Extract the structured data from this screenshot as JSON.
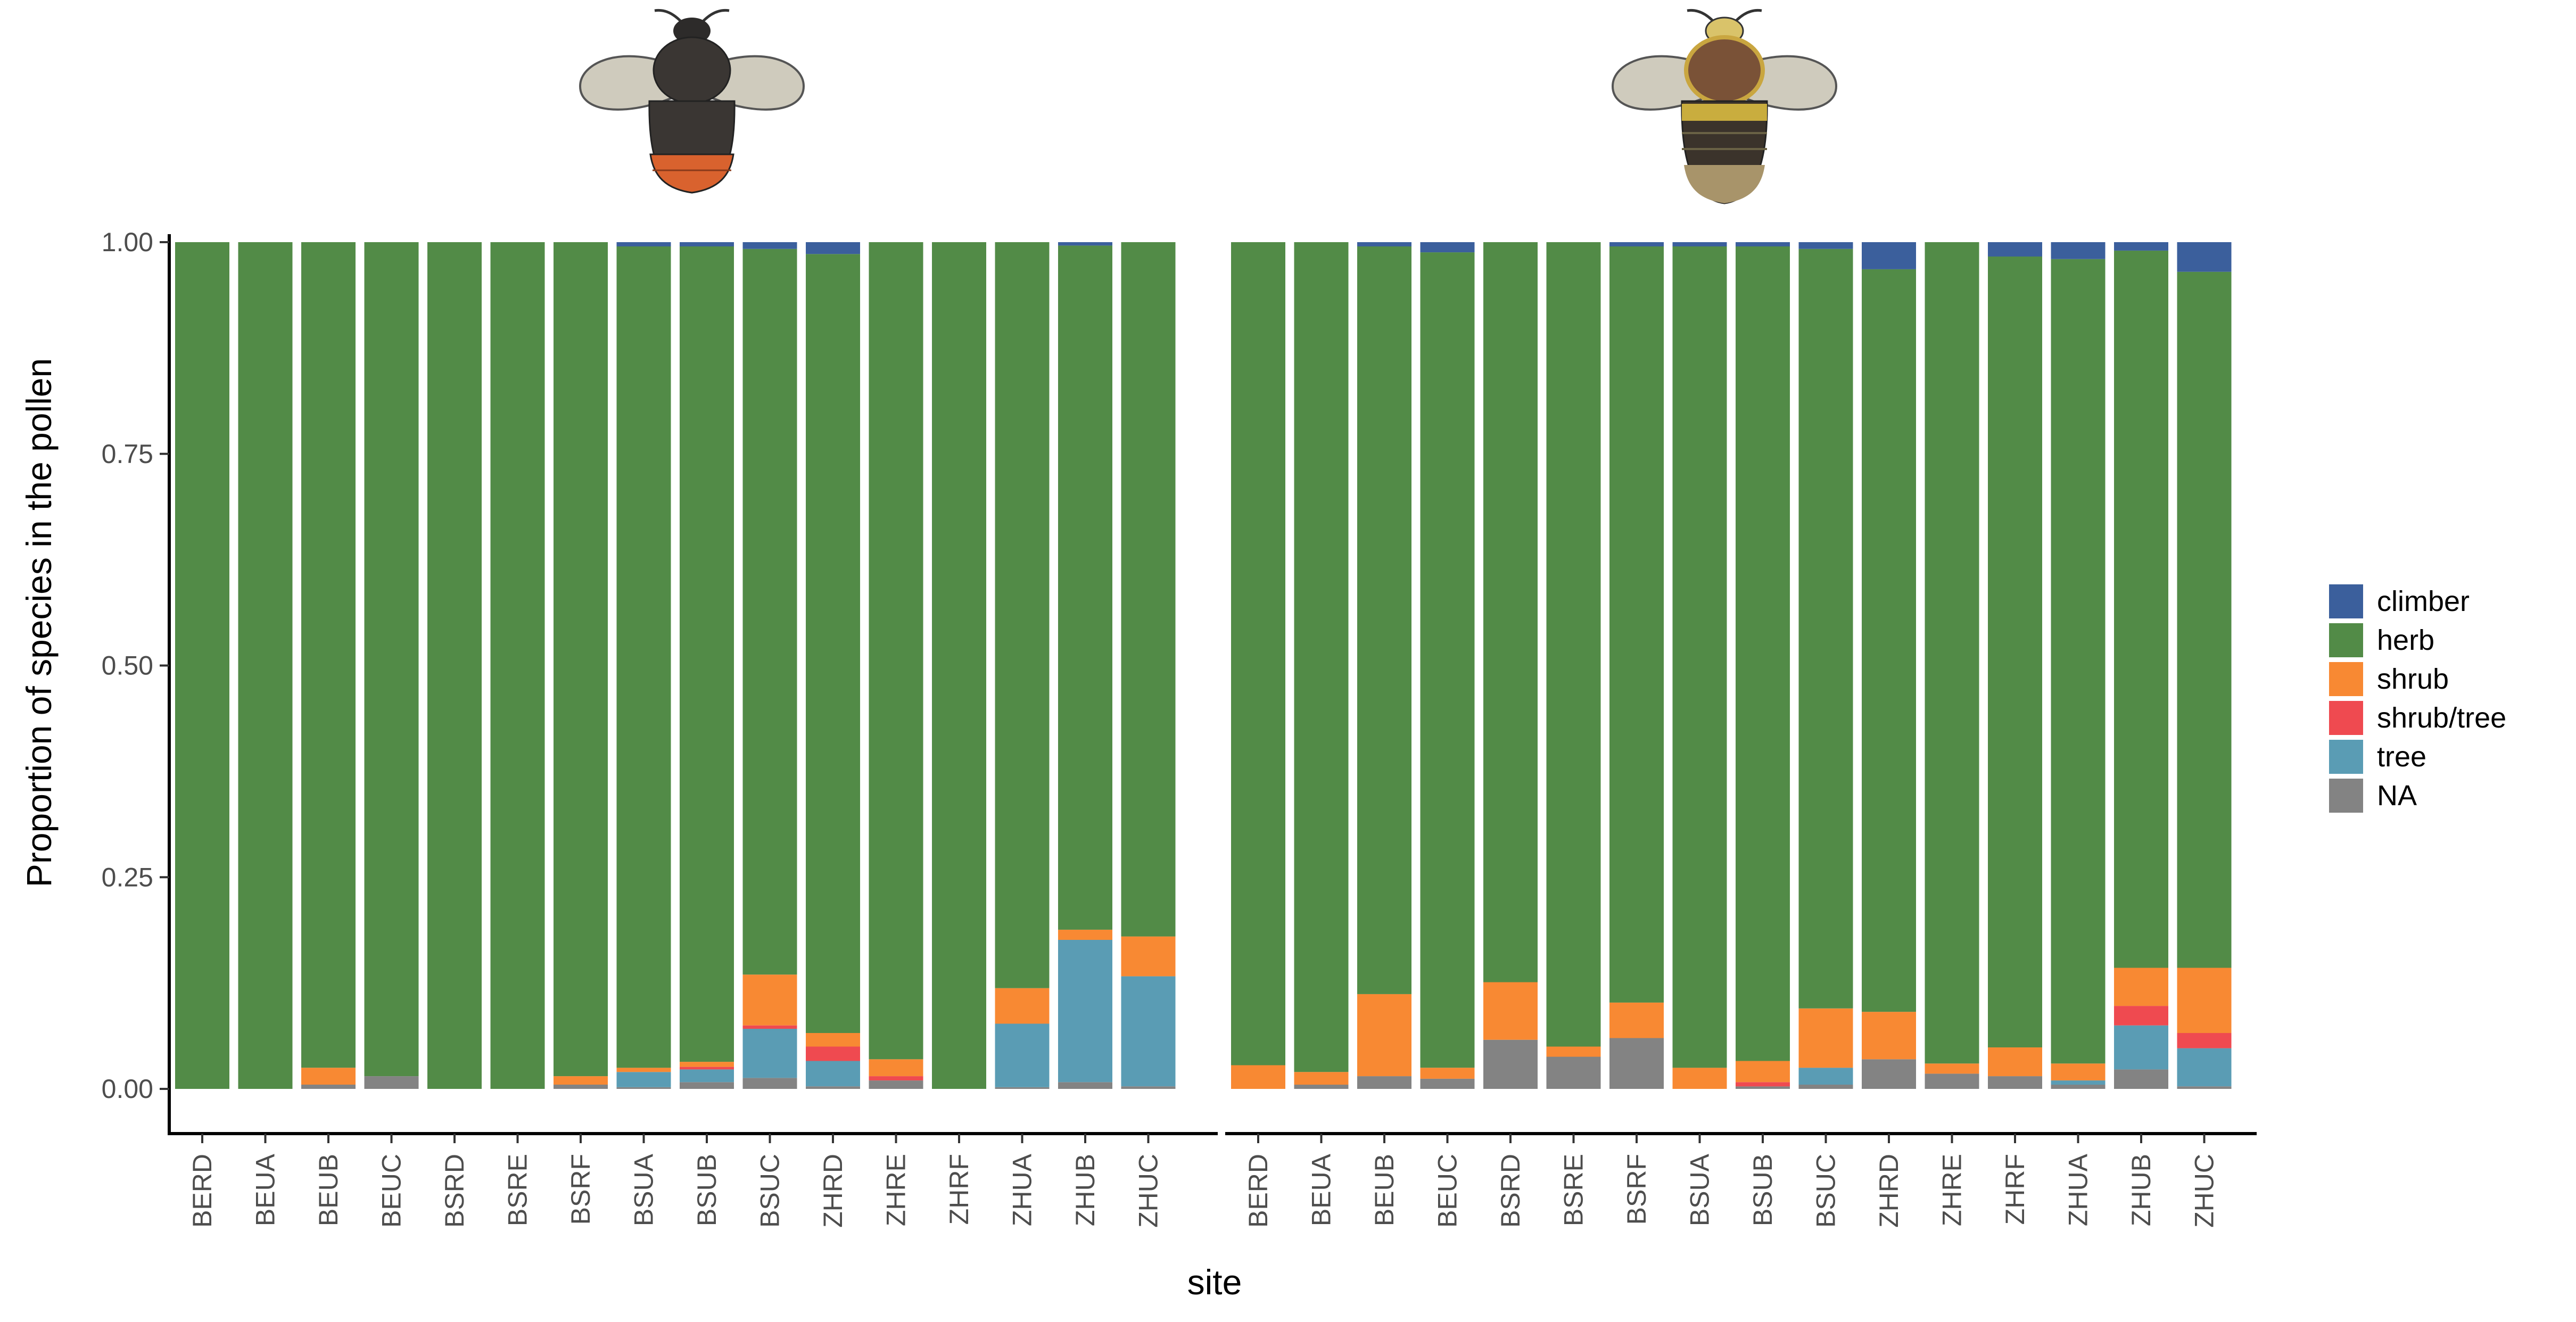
{
  "chart_data": {
    "type": "bar",
    "stacked": true,
    "xlabel": "site",
    "ylabel": "Proportion of species in the pollen",
    "ylim": [
      0,
      1
    ],
    "yticks": [
      "0.00",
      "0.25",
      "0.50",
      "0.75",
      "1.00"
    ],
    "grid": false,
    "legend": {
      "placement": "right",
      "entries": [
        "climber",
        "herb",
        "shrub",
        "shrub/tree",
        "tree",
        "NA"
      ]
    },
    "colors": {
      "climber": "#3b5f9c",
      "herb": "#528b47",
      "shrub": "#f88933",
      "shrub/tree": "#ef4a50",
      "tree": "#5a9cb4",
      "NA": "#838383"
    },
    "stack_order_bottom_to_top": [
      "NA",
      "tree",
      "shrub/tree",
      "shrub",
      "herb",
      "climber"
    ],
    "panels": [
      {
        "icon": "red-tailed-bumblebee-icon",
        "categories": [
          "BERD",
          "BEUA",
          "BEUB",
          "BEUC",
          "BSRD",
          "BSRE",
          "BSRF",
          "BSUA",
          "BSUB",
          "BSUC",
          "ZHRD",
          "ZHRE",
          "ZHRF",
          "ZHUA",
          "ZHUB",
          "ZHUC"
        ],
        "series": [
          {
            "name": "NA",
            "values": [
              0,
              0,
              0.005,
              0.015,
              0,
              0,
              0.005,
              0.002,
              0.008,
              0.013,
              0.003,
              0.01,
              0,
              0.002,
              0.008,
              0.003
            ]
          },
          {
            "name": "tree",
            "values": [
              0,
              0,
              0,
              0,
              0,
              0,
              0,
              0.018,
              0.015,
              0.058,
              0.03,
              0,
              0,
              0.075,
              0.168,
              0.13
            ]
          },
          {
            "name": "shrub/tree",
            "values": [
              0,
              0,
              0,
              0,
              0,
              0,
              0,
              0,
              0.003,
              0.004,
              0.017,
              0.005,
              0,
              0,
              0,
              0
            ]
          },
          {
            "name": "shrub",
            "values": [
              0,
              0,
              0.02,
              0,
              0,
              0,
              0.01,
              0.005,
              0.006,
              0.06,
              0.016,
              0.02,
              0,
              0.042,
              0.012,
              0.047
            ]
          },
          {
            "name": "herb",
            "values": [
              1,
              1,
              0.975,
              0.985,
              1,
              1,
              0.985,
              0.97,
              0.963,
              0.857,
              0.92,
              0.965,
              1,
              0.881,
              0.808,
              0.82
            ]
          },
          {
            "name": "climber",
            "values": [
              0,
              0,
              0,
              0,
              0,
              0,
              0,
              0.005,
              0.005,
              0.008,
              0.014,
              0,
              0,
              0,
              0.004,
              0
            ]
          }
        ]
      },
      {
        "icon": "buff-tailed-bumblebee-icon",
        "categories": [
          "BERD",
          "BEUA",
          "BEUB",
          "BEUC",
          "BSRD",
          "BSRE",
          "BSRF",
          "BSUA",
          "BSUB",
          "BSUC",
          "ZHRD",
          "ZHRE",
          "ZHRF",
          "ZHUA",
          "ZHUB",
          "ZHUC"
        ],
        "series": [
          {
            "name": "NA",
            "values": [
              0,
              0.005,
              0.015,
              0.012,
              0.058,
              0.038,
              0.06,
              0,
              0.003,
              0.005,
              0.035,
              0.018,
              0.015,
              0.005,
              0.023,
              0.003
            ]
          },
          {
            "name": "tree",
            "values": [
              0,
              0,
              0,
              0,
              0,
              0,
              0,
              0,
              0,
              0.02,
              0,
              0,
              0,
              0.005,
              0.052,
              0.045
            ]
          },
          {
            "name": "shrub/tree",
            "values": [
              0,
              0,
              0,
              0,
              0,
              0,
              0,
              0,
              0.005,
              0,
              0,
              0,
              0,
              0,
              0.023,
              0.018
            ]
          },
          {
            "name": "shrub",
            "values": [
              0.028,
              0.015,
              0.097,
              0.013,
              0.068,
              0.012,
              0.042,
              0.025,
              0.025,
              0.07,
              0.056,
              0.012,
              0.034,
              0.02,
              0.045,
              0.077
            ]
          },
          {
            "name": "herb",
            "values": [
              0.972,
              0.98,
              0.883,
              0.963,
              0.874,
              0.95,
              0.893,
              0.97,
              0.962,
              0.897,
              0.877,
              0.97,
              0.934,
              0.95,
              0.847,
              0.822
            ]
          },
          {
            "name": "climber",
            "values": [
              0,
              0,
              0.005,
              0.012,
              0,
              0,
              0.005,
              0.005,
              0.005,
              0.008,
              0.032,
              0,
              0.017,
              0.02,
              0.01,
              0.035
            ]
          }
        ]
      }
    ]
  }
}
